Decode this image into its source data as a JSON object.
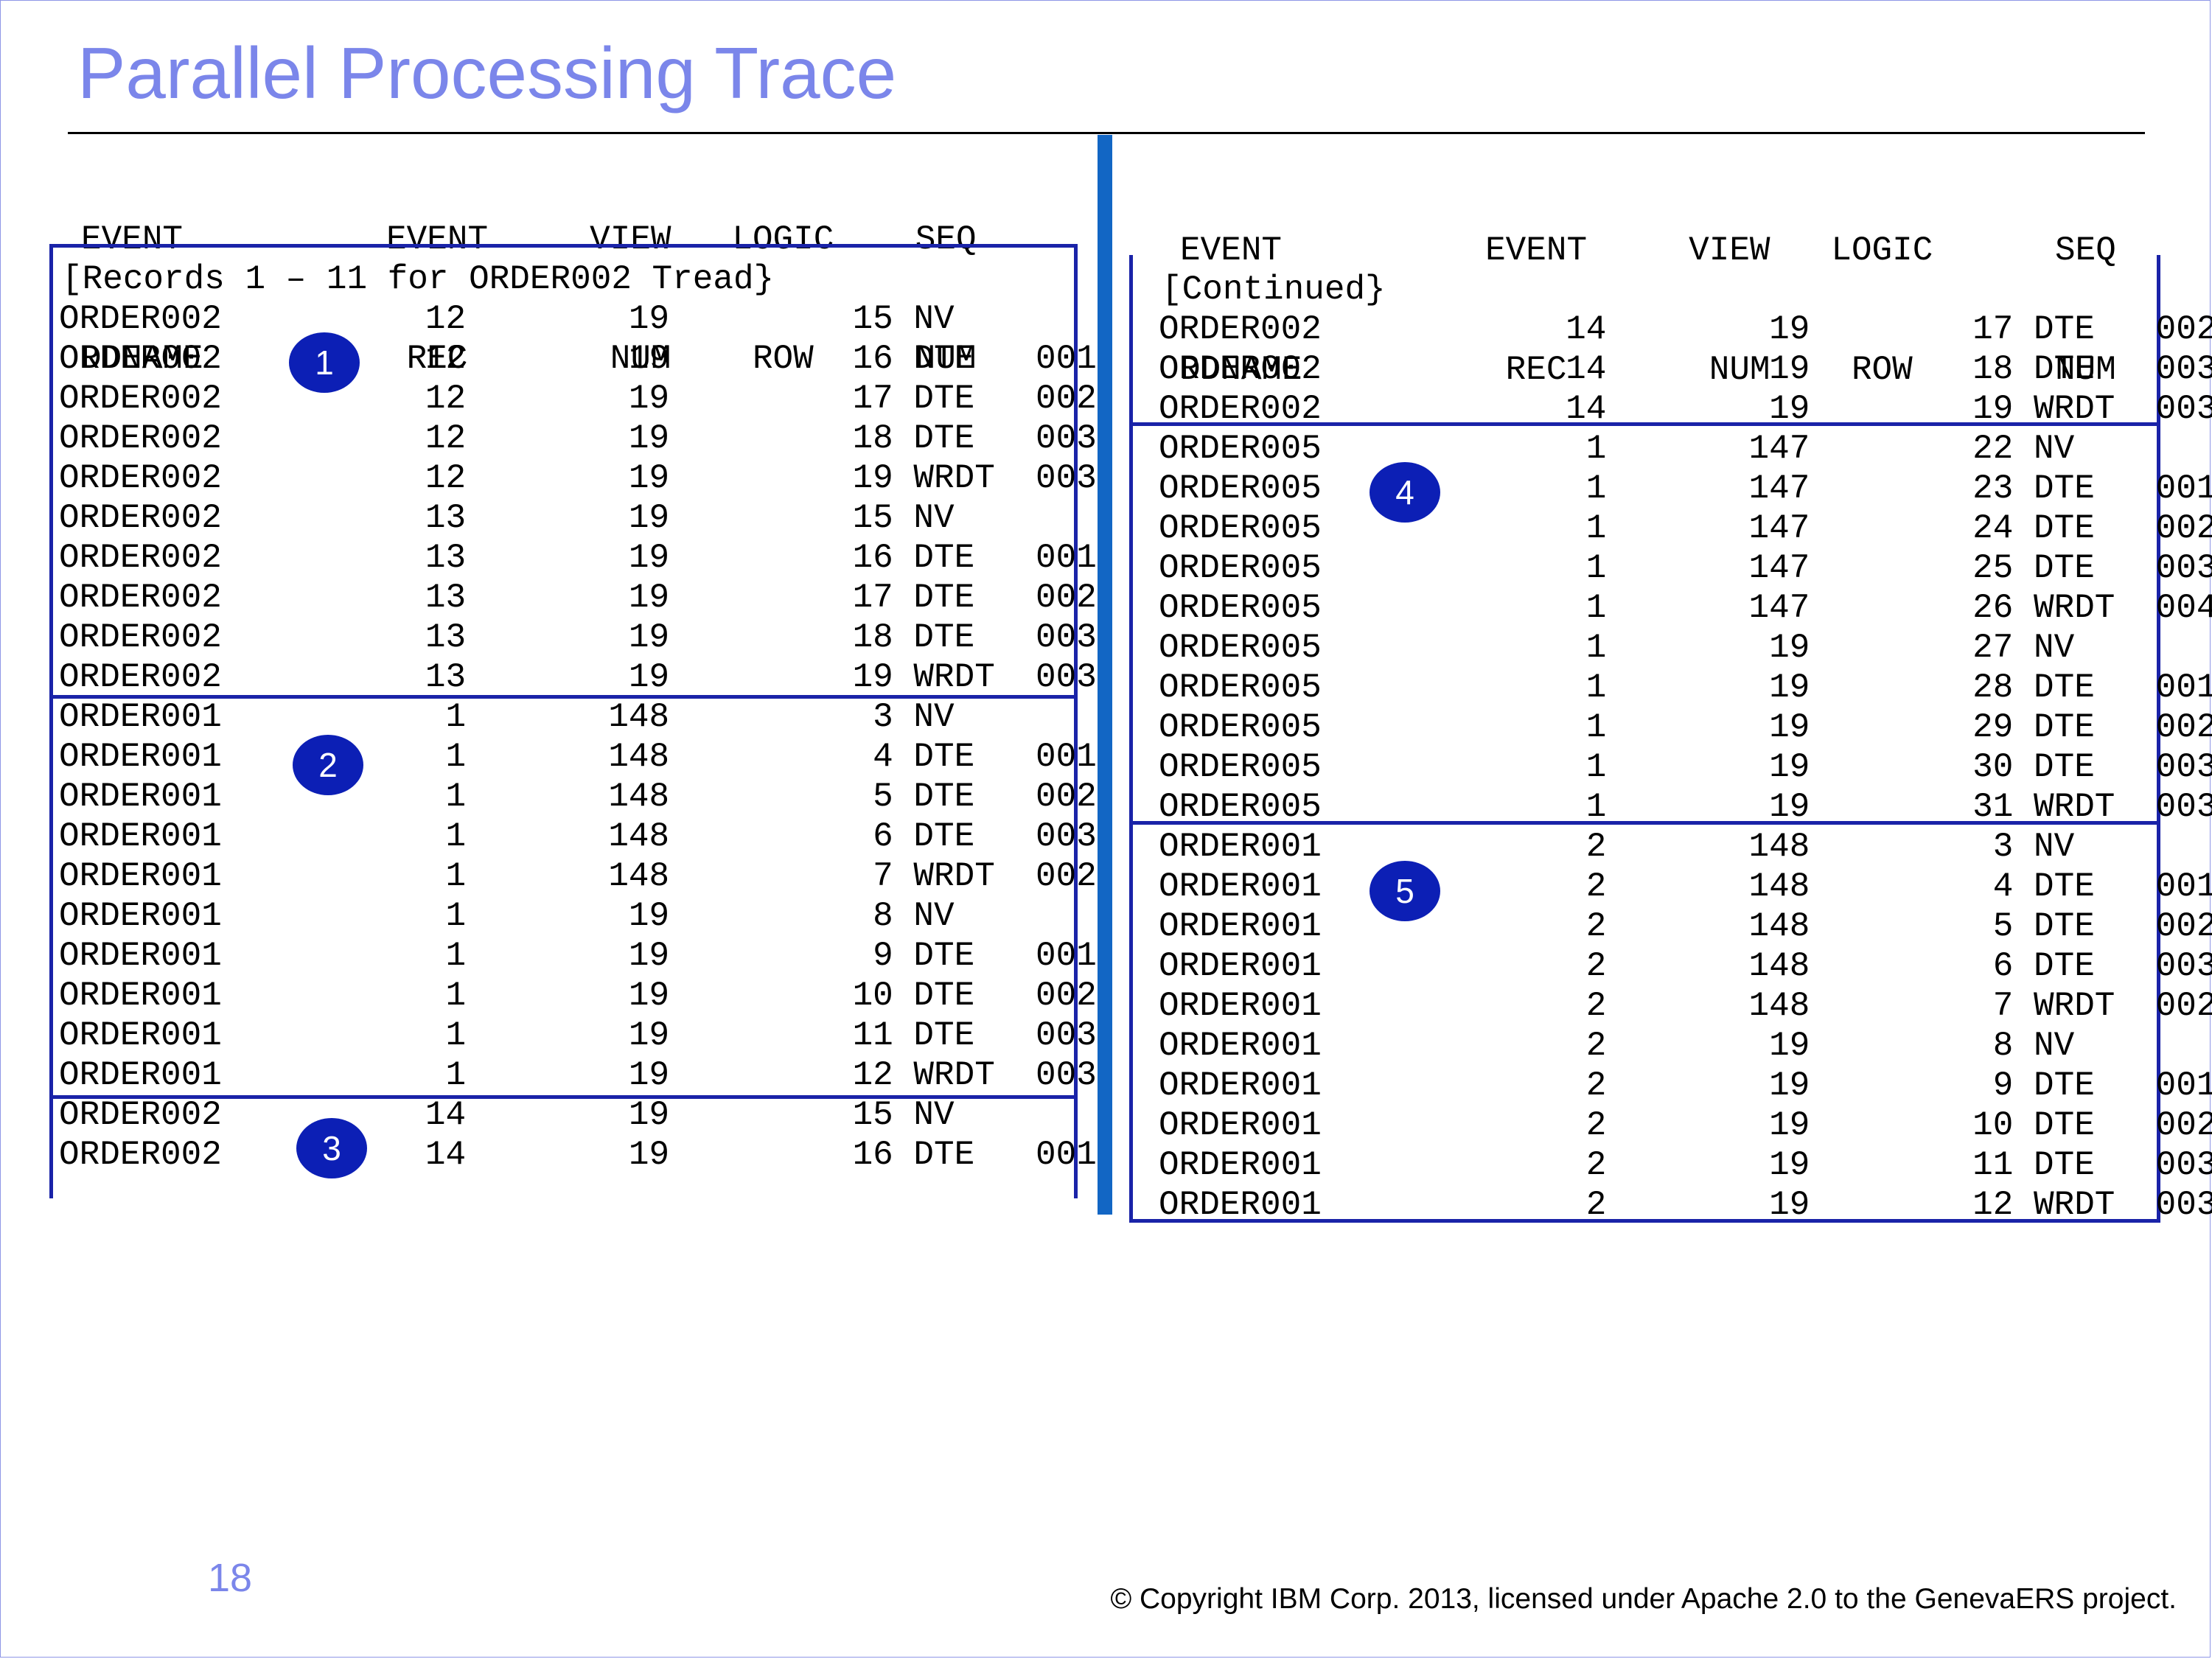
{
  "slide": {
    "title": "Parallel Processing Trace",
    "page_number": "18",
    "copyright": "© Copyright IBM Corp. 2013, licensed under Apache 2.0 to the GenevaERS project."
  },
  "left_panel": {
    "header_line1": "EVENT          EVENT     VIEW   LOGIC    SEQ",
    "header_line2": "DDNAME          REC       NUM    ROW     NUM",
    "note": "[Records 1 – 11 for ORDER002 Tread}",
    "rows": [
      "ORDER002          12        19         15 NV",
      "ORDER002          12        19         16 DTE   001",
      "ORDER002          12        19         17 DTE   002",
      "ORDER002          12        19         18 DTE   003",
      "ORDER002          12        19         19 WRDT  003",
      "ORDER002          13        19         15 NV",
      "ORDER002          13        19         16 DTE   001",
      "ORDER002          13        19         17 DTE   002",
      "ORDER002          13        19         18 DTE   003",
      "ORDER002          13        19         19 WRDT  003",
      "ORDER001           1       148          3 NV",
      "ORDER001           1       148          4 DTE   001",
      "ORDER001           1       148          5 DTE   002",
      "ORDER001           1       148          6 DTE   003",
      "ORDER001           1       148          7 WRDT  002",
      "ORDER001           1        19          8 NV",
      "ORDER001           1        19          9 DTE   001",
      "ORDER001           1        19         10 DTE   002",
      "ORDER001           1        19         11 DTE   003",
      "ORDER001           1        19         12 WRDT  003",
      "ORDER002          14        19         15 NV",
      "ORDER002          14        19         16 DTE   001"
    ]
  },
  "right_panel": {
    "header_line1": "EVENT          EVENT     VIEW   LOGIC      SEQ",
    "header_line2": "DDNAME          REC       NUM    ROW       NUM",
    "note": "[Continued}",
    "rows": [
      "ORDER002            14        19        17 DTE   002",
      "ORDER002            14        19        18 DTE   003",
      "ORDER002            14        19        19 WRDT  003",
      "ORDER005             1       147        22 NV",
      "ORDER005             1       147        23 DTE   001",
      "ORDER005             1       147        24 DTE   002",
      "ORDER005             1       147        25 DTE   003",
      "ORDER005             1       147        26 WRDT  004",
      "ORDER005             1        19        27 NV",
      "ORDER005             1        19        28 DTE   001",
      "ORDER005             1        19        29 DTE   002",
      "ORDER005             1        19        30 DTE   003",
      "ORDER005             1        19        31 WRDT  003",
      "ORDER001             2       148         3 NV",
      "ORDER001             2       148         4 DTE   001",
      "ORDER001             2       148         5 DTE   002",
      "ORDER001             2       148         6 DTE   003",
      "ORDER001             2       148         7 WRDT  002",
      "ORDER001             2        19         8 NV",
      "ORDER001             2        19         9 DTE   001",
      "ORDER001             2        19        10 DTE   002",
      "ORDER001             2        19        11 DTE   003",
      "ORDER001             2        19        12 WRDT  003"
    ]
  },
  "badges": [
    "1",
    "2",
    "3",
    "4",
    "5"
  ],
  "colors": {
    "title": "#7b86ea",
    "box_border": "#1a23a8",
    "badge_fill": "#0c1fb5",
    "divider": "#1266c4"
  }
}
